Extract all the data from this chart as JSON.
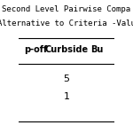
{
  "title_line1": "Second Level Pairwise Compa",
  "title_line2": "Alternative to Criteria -Valu",
  "col_headers": [
    "p-off",
    "Curbside",
    "Bu"
  ],
  "row_values": [
    [
      "",
      "5",
      ""
    ],
    [
      "",
      "1",
      ""
    ]
  ],
  "bg_color": "#ffffff",
  "title_fontsize": 6.5,
  "header_fontsize": 7,
  "cell_fontsize": 8
}
